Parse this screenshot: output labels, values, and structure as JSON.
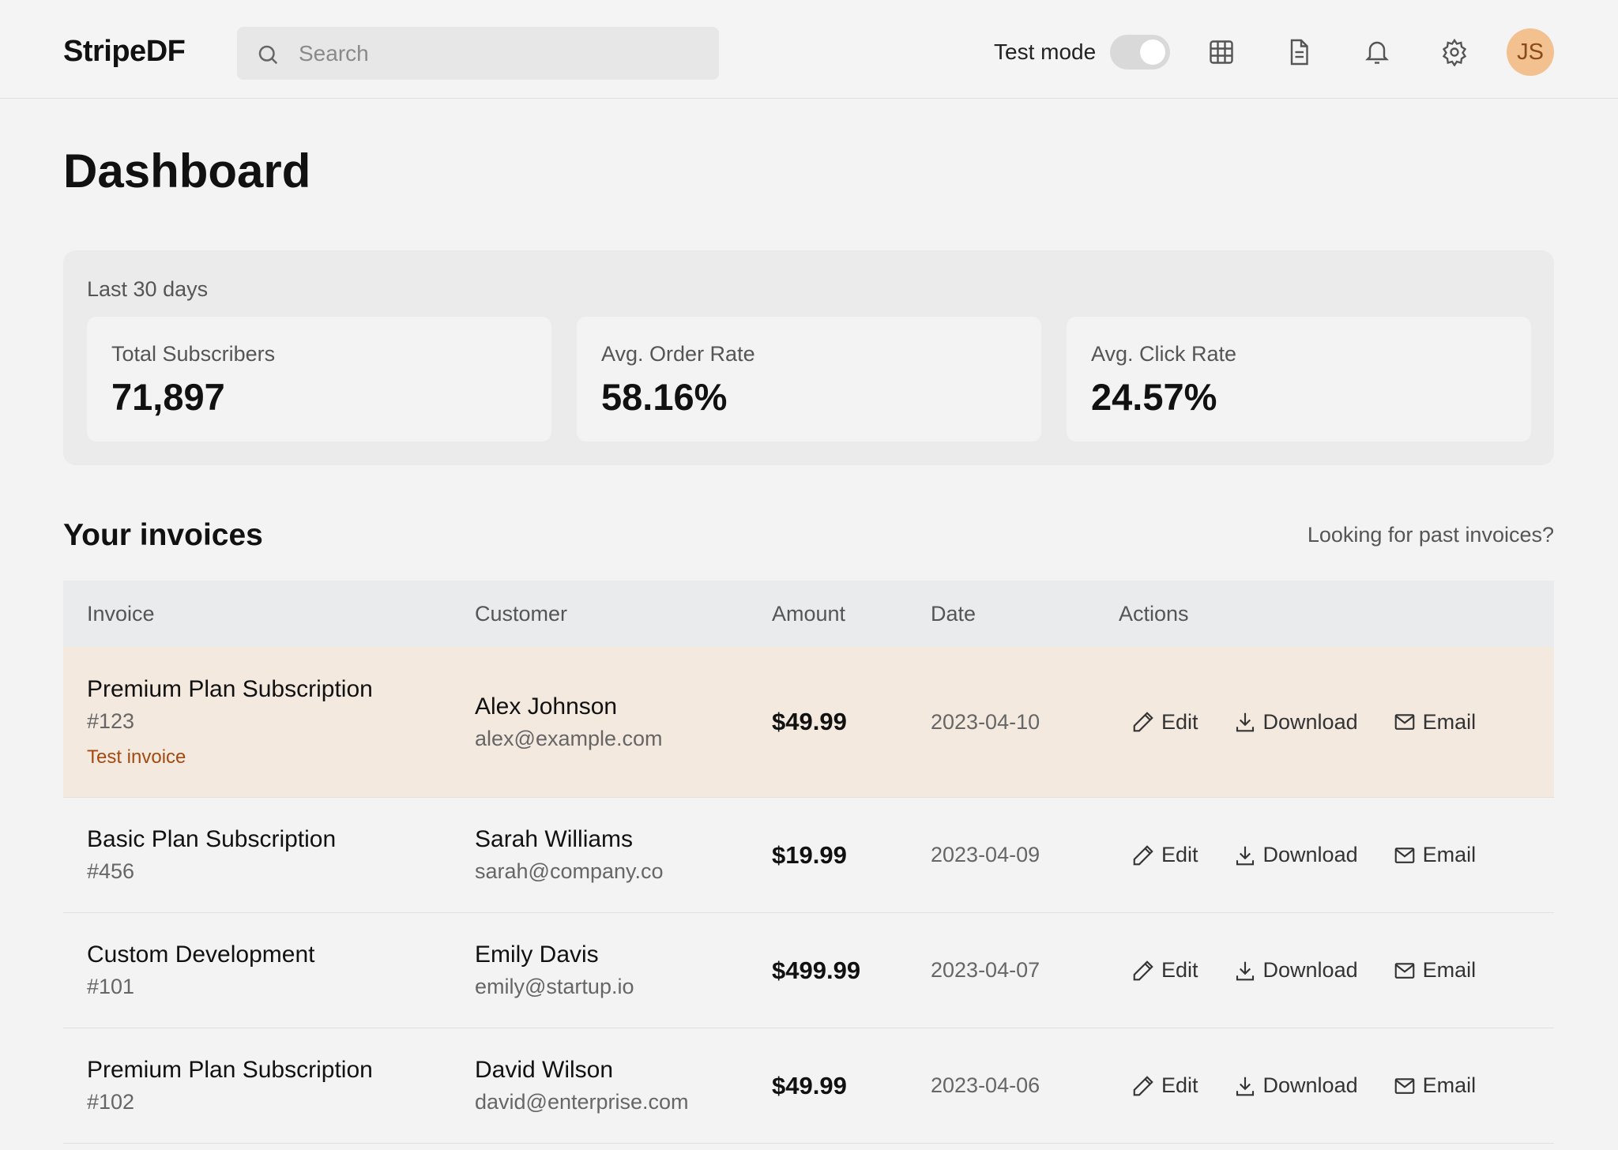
{
  "header": {
    "logo": "StripeDF",
    "search_placeholder": "Search",
    "test_mode_label": "Test mode",
    "avatar": "JS"
  },
  "page_title": "Dashboard",
  "stats": {
    "period": "Last 30 days",
    "cards": [
      {
        "label": "Total Subscribers",
        "value": "71,897"
      },
      {
        "label": "Avg. Order Rate",
        "value": "58.16%"
      },
      {
        "label": "Avg. Click Rate",
        "value": "24.57%"
      }
    ]
  },
  "invoices": {
    "title": "Your invoices",
    "past_link": "Looking for past invoices?",
    "columns": [
      "Invoice",
      "Customer",
      "Amount",
      "Date",
      "Actions"
    ],
    "rows": [
      {
        "title": "Premium Plan Subscription",
        "number": "#123",
        "tag": "Test invoice",
        "customer": "Alex Johnson",
        "email": "alex@example.com",
        "amount": "$49.99",
        "date": "2023-04-10",
        "actions": [
          "Edit",
          "Download",
          "Email"
        ]
      },
      {
        "title": "Basic Plan Subscription",
        "number": "#456",
        "customer": "Sarah Williams",
        "email": "sarah@company.co",
        "amount": "$19.99",
        "date": "2023-04-09",
        "actions": [
          "Edit",
          "Download",
          "Email"
        ]
      },
      {
        "title": "Custom Development",
        "number": "#101",
        "customer": "Emily Davis",
        "email": "emily@startup.io",
        "amount": "$499.99",
        "date": "2023-04-07",
        "actions": [
          "Edit",
          "Download",
          "Email"
        ]
      },
      {
        "title": "Premium Plan Subscription",
        "number": "#102",
        "customer": "David Wilson",
        "email": "david@enterprise.com",
        "amount": "$49.99",
        "date": "2023-04-06",
        "actions": [
          "Edit",
          "Download",
          "Email"
        ]
      }
    ]
  }
}
